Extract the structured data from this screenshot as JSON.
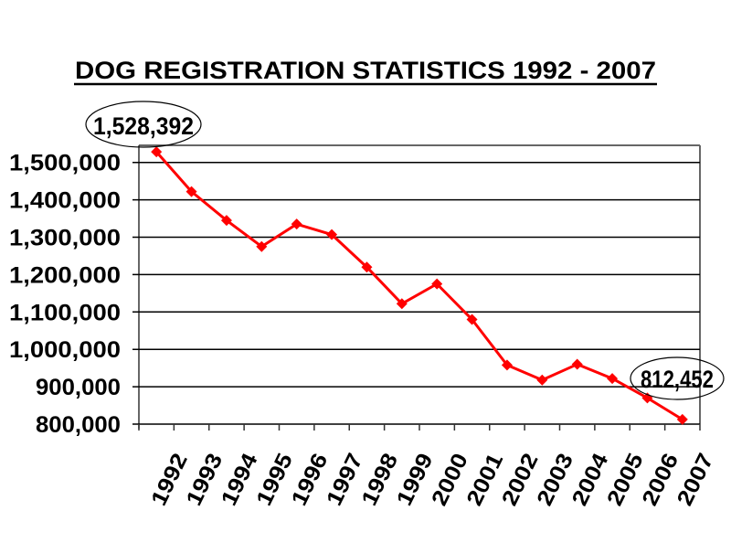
{
  "chart_data": {
    "type": "line",
    "title": "DOG REGISTRATION STATISTICS  1992 - 2007",
    "xlabel": "",
    "ylabel": "",
    "categories": [
      "1992",
      "1993",
      "1994",
      "1995",
      "1996",
      "1997",
      "1998",
      "1999",
      "2000",
      "2001",
      "2002",
      "2003",
      "2004",
      "2005",
      "2006",
      "2007"
    ],
    "series": [
      {
        "name": "Dog registrations",
        "color": "#ff0000",
        "marker": "diamond",
        "values": [
          1528392,
          1422000,
          1345000,
          1275000,
          1335000,
          1307000,
          1220000,
          1122000,
          1175000,
          1080000,
          958000,
          918000,
          960000,
          922000,
          870000,
          812452
        ]
      }
    ],
    "ylim": [
      800000,
      1550000
    ],
    "yticks": [
      800000,
      900000,
      1000000,
      1100000,
      1200000,
      1300000,
      1400000,
      1500000
    ],
    "ytick_labels": [
      "800,000",
      "900,000",
      "1,000,000",
      "1,100,000",
      "1,200,000",
      "1,300,000",
      "1,400,000",
      "1,500,000"
    ],
    "grid": true,
    "legend": "none",
    "annotations": [
      {
        "label": "1,528,392",
        "category": "1992",
        "shape": "ellipse"
      },
      {
        "label": "812,452",
        "category": "2007",
        "shape": "ellipse"
      }
    ]
  },
  "colors": {
    "line": "#ff0000",
    "grid": "#000000",
    "text": "#000000",
    "background": "#ffffff"
  }
}
